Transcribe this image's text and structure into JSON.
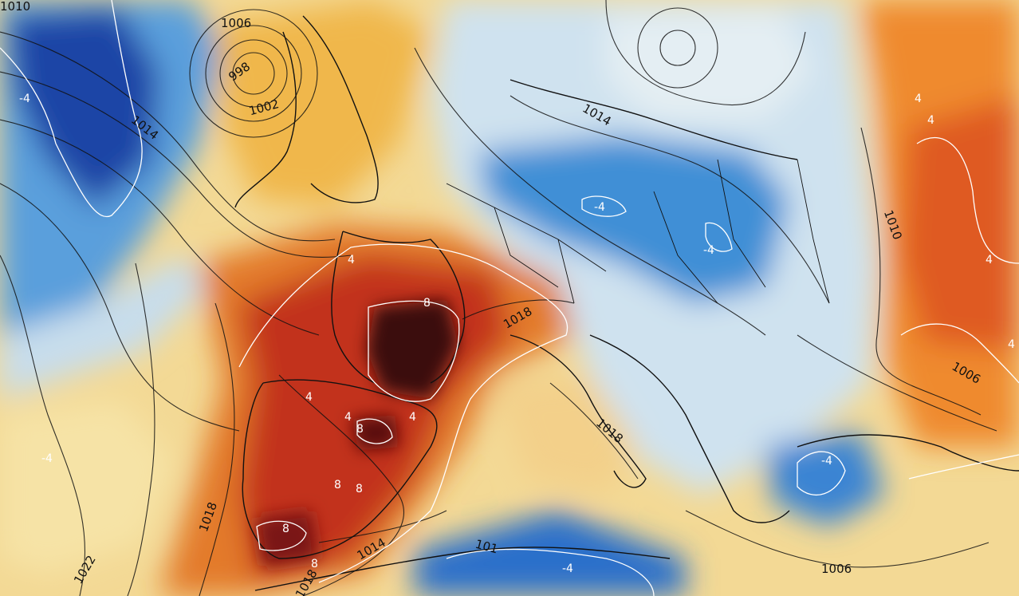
{
  "map": {
    "pressure_labels": [
      {
        "id": "1010-nw",
        "text": "1010"
      },
      {
        "id": "1006-low",
        "text": "1006"
      },
      {
        "id": "998",
        "text": "998"
      },
      {
        "id": "1002",
        "text": "1002"
      },
      {
        "id": "1014-atl",
        "text": "1014"
      },
      {
        "id": "1014-scan",
        "text": "1014"
      },
      {
        "id": "1010-east",
        "text": "1010"
      },
      {
        "id": "1018-alps",
        "text": "1018"
      },
      {
        "id": "1006-east",
        "text": "1006"
      },
      {
        "id": "1018-ita",
        "text": "1018"
      },
      {
        "id": "1018-ibe",
        "text": "1018"
      },
      {
        "id": "1022",
        "text": "1022"
      },
      {
        "id": "1014-med",
        "text": "1014"
      },
      {
        "id": "1018-sw",
        "text": "1018"
      },
      {
        "id": "1006-se",
        "text": "1006"
      },
      {
        "id": "101-afr",
        "text": "101"
      }
    ],
    "temp_labels": [
      {
        "id": "m4-atl",
        "text": "-4"
      },
      {
        "id": "m4-ger",
        "text": "-4"
      },
      {
        "id": "m4-pol",
        "text": "-4"
      },
      {
        "id": "p4-rus1",
        "text": "4"
      },
      {
        "id": "p4-rus2",
        "text": "4"
      },
      {
        "id": "p4-rus3",
        "text": "4"
      },
      {
        "id": "p4-tur",
        "text": "4"
      },
      {
        "id": "p8-fra",
        "text": "8"
      },
      {
        "id": "p4-fra",
        "text": "4"
      },
      {
        "id": "p4-spn1",
        "text": "4"
      },
      {
        "id": "p4-spn2",
        "text": "4"
      },
      {
        "id": "p4-spn3",
        "text": "4"
      },
      {
        "id": "p8-spn1",
        "text": "8"
      },
      {
        "id": "p8-spn2",
        "text": "8"
      },
      {
        "id": "p8-spn3",
        "text": "8"
      },
      {
        "id": "p8-spn4",
        "text": "8"
      },
      {
        "id": "p8-spn5",
        "text": "8"
      },
      {
        "id": "m4-atlsw",
        "text": "-4"
      },
      {
        "id": "m4-gre",
        "text": "-4"
      },
      {
        "id": "m4-afr",
        "text": "-4"
      }
    ],
    "colors": {
      "cold_deep": "#1e3f9e",
      "cold": "#3f8ed6",
      "cool": "#a9cfea",
      "neutral": "#eef1ee",
      "warm_light": "#f5dc8f",
      "warm": "#f0a838",
      "hot": "#df5a24",
      "very_hot": "#b8261a",
      "extreme": "#5a1010",
      "isobar": "#111111",
      "isotherm": "#ffffff"
    }
  }
}
